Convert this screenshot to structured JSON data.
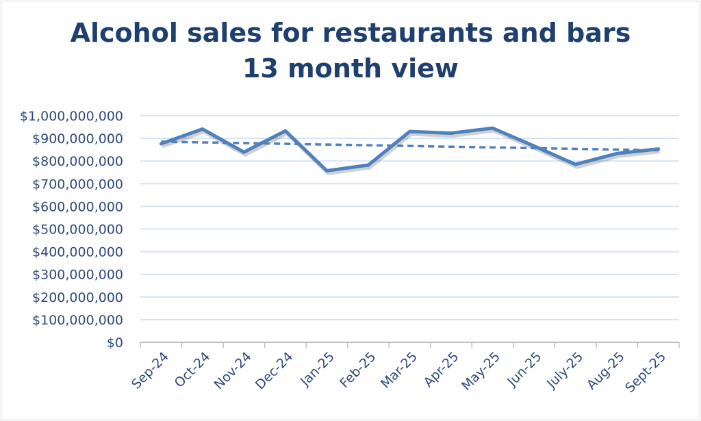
{
  "chart_data": {
    "type": "line",
    "title": [
      "Alcohol sales for restaurants and bars",
      "13 month view"
    ],
    "categories": [
      "Sep-24",
      "Oct-24",
      "Nov-24",
      "Dec-24",
      "Jan-25",
      "Feb-25",
      "Mar-25",
      "Apr-25",
      "May-25",
      "Jun-25",
      "July-25",
      "Aug-25",
      "Sept-25"
    ],
    "series": [
      {
        "values": [
          876000000,
          941000000,
          839000000,
          933000000,
          757000000,
          782000000,
          930000000,
          923000000,
          945000000,
          866000000,
          785000000,
          833000000,
          853000000
        ],
        "color": "#4f81bd",
        "trendline": "linear, dashed"
      }
    ],
    "ylim": [
      0,
      1000000000
    ],
    "yticks": [
      "$0",
      "$100,000,000",
      "$200,000,000",
      "$300,000,000",
      "$400,000,000",
      "$500,000,000",
      "$600,000,000",
      "$700,000,000",
      "$800,000,000",
      "$900,000,000",
      "$1,000,000,000"
    ],
    "grid": "horizontal",
    "legend": "none",
    "xlabel": "",
    "ylabel": ""
  }
}
